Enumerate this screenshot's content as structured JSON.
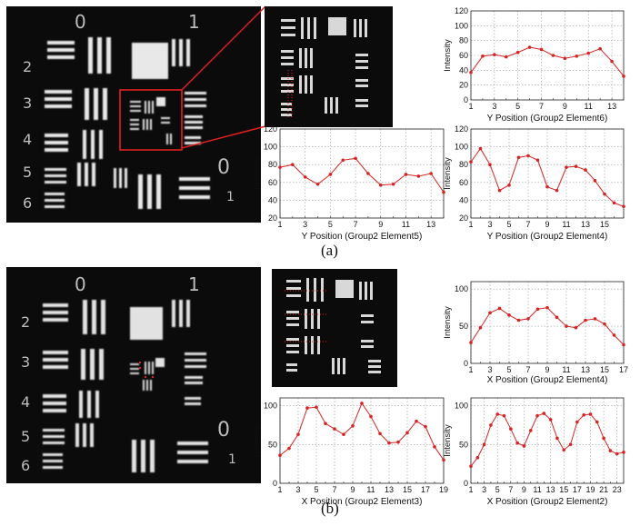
{
  "figure": {
    "captions": [
      "(a)",
      "(b)"
    ]
  },
  "images": {
    "a_main": {
      "digits": [
        "0",
        "1",
        "2",
        "3",
        "4",
        "5",
        "6",
        "0",
        "1"
      ]
    },
    "b_main": {
      "digits": [
        "0",
        "1",
        "2",
        "3",
        "4",
        "5",
        "6",
        "0",
        "1"
      ]
    }
  },
  "colors": {
    "series": "#d42424",
    "highlight": "#e02020",
    "grid": "#9a9a9a"
  },
  "chart_data": [
    {
      "id": "a1",
      "type": "line",
      "xlabel": "Y Position (Group2 Element6)",
      "ylabel": "Intensity",
      "x": [
        1,
        2,
        3,
        4,
        5,
        6,
        7,
        8,
        9,
        10,
        11,
        12,
        13,
        14
      ],
      "values": [
        37,
        59,
        61,
        58,
        64,
        71,
        68,
        60,
        56,
        59,
        63,
        69,
        52,
        32
      ],
      "xticks": [
        1,
        3,
        5,
        7,
        9,
        11,
        13
      ],
      "ylim": [
        0,
        120
      ],
      "yticks": [
        0,
        20,
        40,
        60,
        80,
        100,
        120
      ],
      "xlim": [
        1,
        14
      ],
      "grid": true
    },
    {
      "id": "a2",
      "type": "line",
      "xlabel": "Y Position (Group2 Element5)",
      "ylabel": "Intensity",
      "x": [
        1,
        2,
        3,
        4,
        5,
        6,
        7,
        8,
        9,
        10,
        11,
        12,
        13,
        14
      ],
      "values": [
        77,
        80,
        66,
        58,
        69,
        85,
        87,
        70,
        57,
        58,
        69,
        67,
        70,
        49
      ],
      "xticks": [
        1,
        3,
        5,
        7,
        9,
        11,
        13
      ],
      "ylim": [
        20,
        120
      ],
      "yticks": [
        20,
        40,
        60,
        80,
        100,
        120
      ],
      "xlim": [
        1,
        14
      ],
      "grid": true
    },
    {
      "id": "a3",
      "type": "line",
      "xlabel": "Y Position (Group2 Element4)",
      "ylabel": "Intensity",
      "x": [
        1,
        2,
        3,
        4,
        5,
        6,
        7,
        8,
        9,
        10,
        11,
        12,
        13,
        14,
        15,
        16,
        17
      ],
      "values": [
        83,
        98,
        80,
        51,
        57,
        88,
        90,
        85,
        55,
        51,
        77,
        78,
        74,
        62,
        47,
        37,
        33
      ],
      "xticks": [
        1,
        3,
        5,
        7,
        9,
        11,
        13,
        15
      ],
      "ylim": [
        20,
        120
      ],
      "yticks": [
        20,
        40,
        60,
        80,
        100,
        120
      ],
      "xlim": [
        1,
        17
      ],
      "grid": true
    },
    {
      "id": "b1",
      "type": "line",
      "xlabel": "X Position (Group2 Element4)",
      "ylabel": "Intensity",
      "x": [
        1,
        2,
        3,
        4,
        5,
        6,
        7,
        8,
        9,
        10,
        11,
        12,
        13,
        14,
        15,
        16,
        17
      ],
      "values": [
        28,
        48,
        68,
        74,
        65,
        58,
        60,
        73,
        75,
        62,
        50,
        48,
        58,
        60,
        53,
        38,
        25
      ],
      "xticks": [
        1,
        3,
        5,
        7,
        9,
        11,
        13,
        15,
        17
      ],
      "ylim": [
        0,
        110
      ],
      "yticks": [
        0,
        50,
        100
      ],
      "xlim": [
        1,
        17
      ],
      "grid": true
    },
    {
      "id": "b2",
      "type": "line",
      "xlabel": "X Position (Group2 Element3)",
      "ylabel": "Intensity",
      "x": [
        1,
        2,
        3,
        4,
        5,
        6,
        7,
        8,
        9,
        10,
        11,
        12,
        13,
        14,
        15,
        16,
        17,
        18,
        19
      ],
      "values": [
        36,
        45,
        63,
        97,
        98,
        77,
        70,
        63,
        74,
        103,
        86,
        64,
        52,
        53,
        65,
        80,
        73,
        47,
        30
      ],
      "xticks": [
        1,
        3,
        5,
        7,
        9,
        11,
        13,
        15,
        17,
        19
      ],
      "ylim": [
        0,
        110
      ],
      "yticks": [
        0,
        50,
        100
      ],
      "xlim": [
        1,
        19
      ],
      "grid": true
    },
    {
      "id": "b3",
      "type": "line",
      "xlabel": "X Position (Group2 Element2)",
      "ylabel": "Intensity",
      "x": [
        1,
        2,
        3,
        4,
        5,
        6,
        7,
        8,
        9,
        10,
        11,
        12,
        13,
        14,
        15,
        16,
        17,
        18,
        19,
        20,
        21,
        22,
        23,
        24
      ],
      "values": [
        22,
        33,
        50,
        75,
        89,
        87,
        70,
        52,
        48,
        68,
        87,
        90,
        82,
        58,
        43,
        50,
        79,
        88,
        89,
        79,
        58,
        42,
        38,
        40
      ],
      "xticks": [
        1,
        3,
        5,
        7,
        9,
        11,
        13,
        15,
        17,
        19,
        21,
        23
      ],
      "ylim": [
        0,
        110
      ],
      "yticks": [
        0,
        50,
        100
      ],
      "xlim": [
        1,
        24
      ],
      "grid": true
    }
  ]
}
